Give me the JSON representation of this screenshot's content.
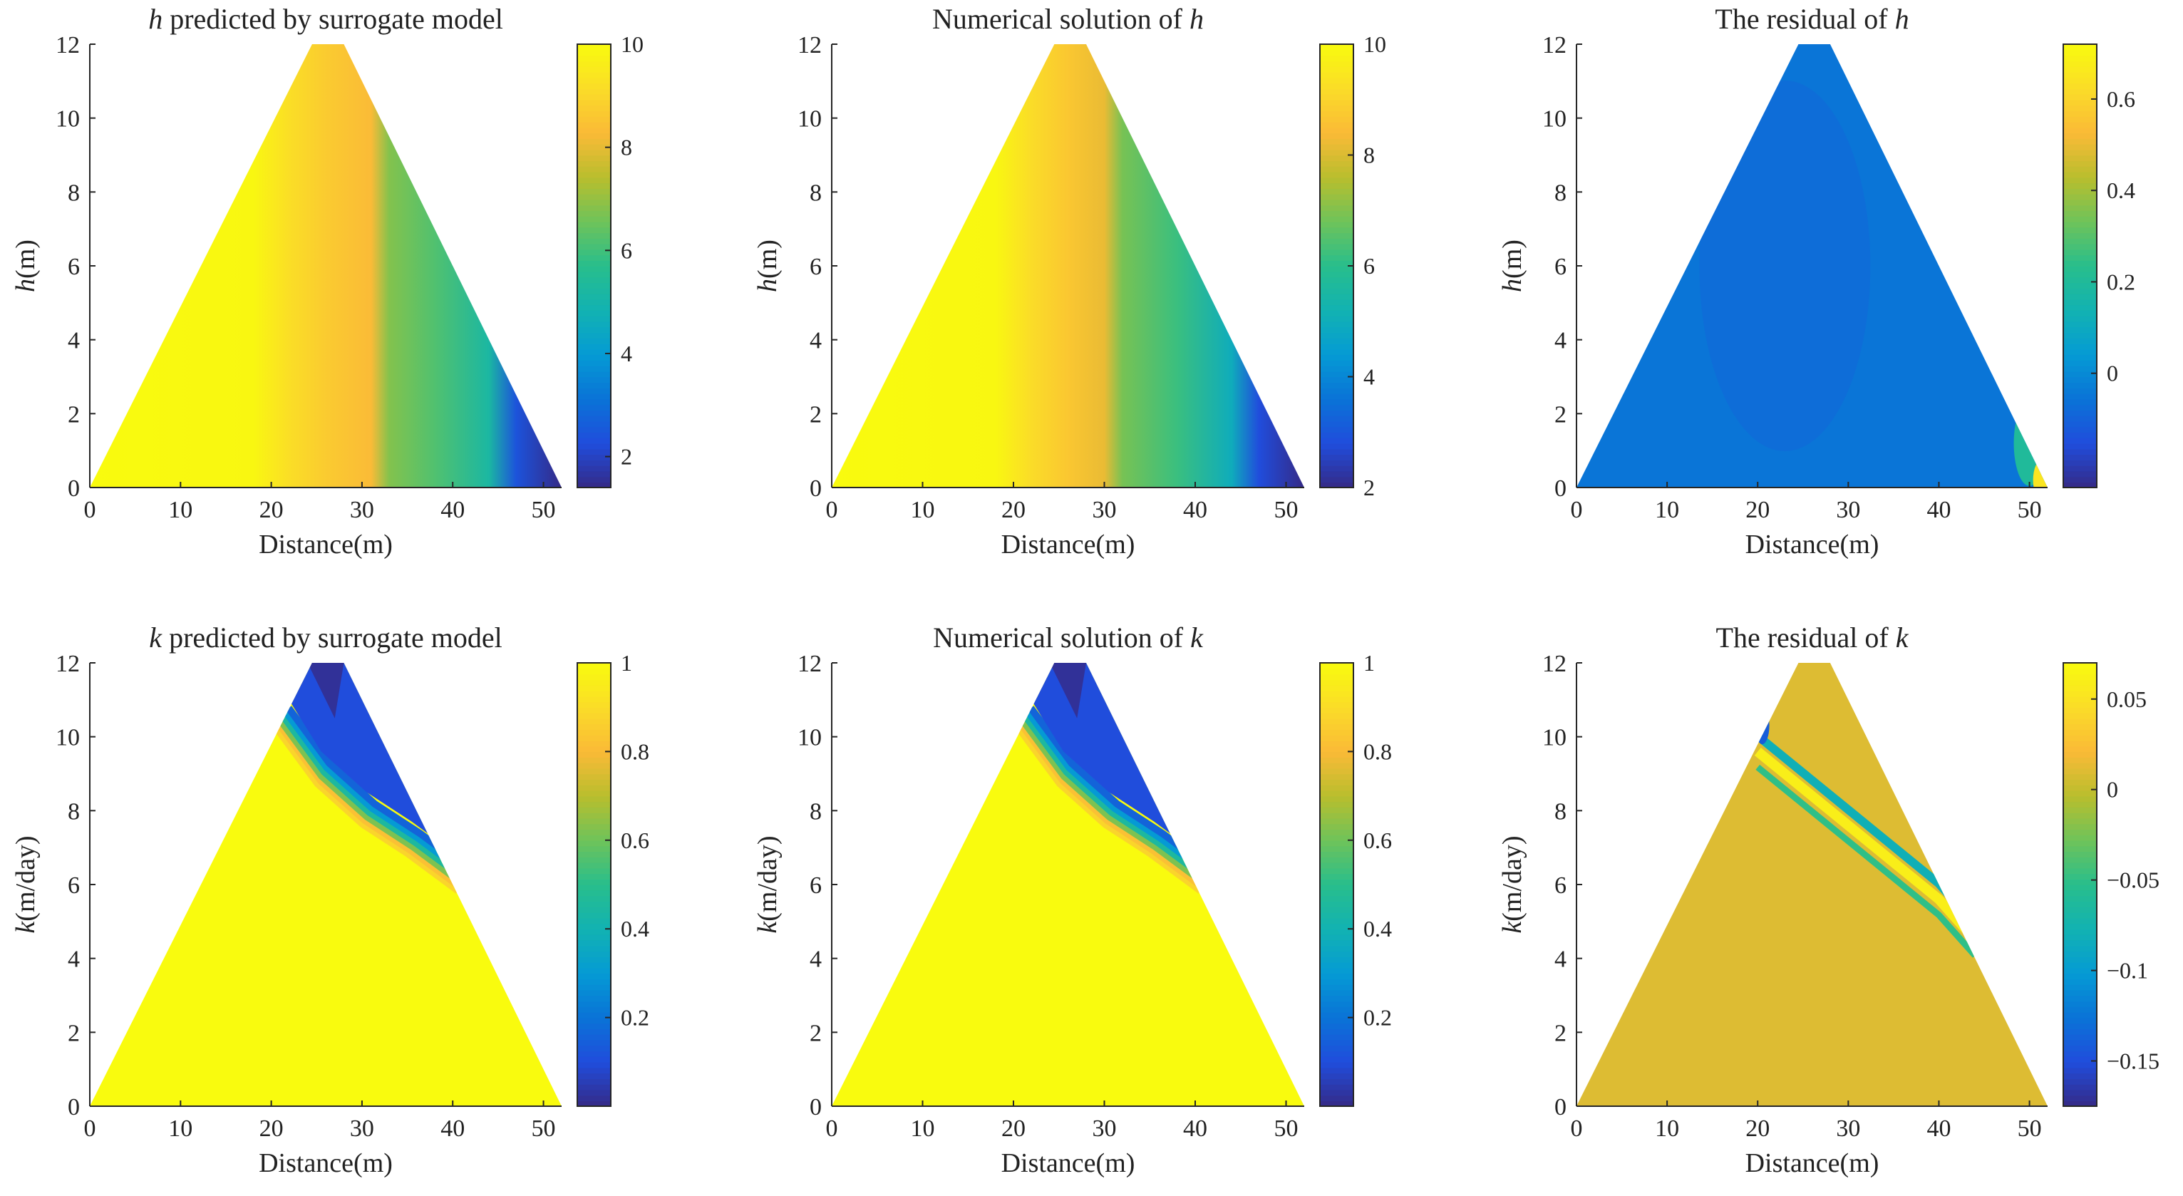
{
  "figure": {
    "panels": [
      {
        "id": "h-pred",
        "title_var": "h",
        "title_rest": " predicted by surrogate model",
        "ylabel_var": "h",
        "ylabel_unit": "(m)",
        "xlabel": "Distance(m)",
        "colorbar": {
          "min": 1.4,
          "max": 10,
          "ticks": [
            "2",
            "4",
            "6",
            "8",
            "10"
          ],
          "tick_values": [
            2,
            4,
            6,
            8,
            10
          ]
        }
      },
      {
        "id": "h-num",
        "title_var": "h",
        "title_rest": "Numerical solution of ",
        "title_var_after": true,
        "ylabel_var": "h",
        "ylabel_unit": "(m)",
        "xlabel": "Distance(m)",
        "colorbar": {
          "min": 2,
          "max": 10,
          "ticks": [
            "2",
            "4",
            "6",
            "8",
            "10"
          ],
          "tick_values": [
            2,
            4,
            6,
            8,
            10
          ]
        }
      },
      {
        "id": "h-res",
        "title_var": "h",
        "title_rest": "The residual of ",
        "title_var_after": true,
        "ylabel_var": "h",
        "ylabel_unit": "(m)",
        "xlabel": "Distance(m)",
        "colorbar": {
          "min": -0.25,
          "max": 0.72,
          "ticks": [
            "0",
            "0.2",
            "0.4",
            "0.6"
          ],
          "tick_values": [
            0,
            0.2,
            0.4,
            0.6
          ]
        }
      },
      {
        "id": "k-pred",
        "title_var": "k",
        "title_rest": " predicted by surrogate model",
        "ylabel_var": "k",
        "ylabel_unit": "(m/day)",
        "xlabel": "Distance(m)",
        "colorbar": {
          "min": 0.0,
          "max": 1.0,
          "ticks": [
            "0.2",
            "0.4",
            "0.6",
            "0.8",
            "1"
          ],
          "tick_values": [
            0.2,
            0.4,
            0.6,
            0.8,
            1.0
          ]
        }
      },
      {
        "id": "k-num",
        "title_var": "k",
        "title_rest": "Numerical solution of ",
        "title_var_after": true,
        "ylabel_var": "k",
        "ylabel_unit": "(m/day)",
        "xlabel": "Distance(m)",
        "colorbar": {
          "min": 0.0,
          "max": 1.0,
          "ticks": [
            "0.2",
            "0.4",
            "0.6",
            "0.8",
            "1"
          ],
          "tick_values": [
            0.2,
            0.4,
            0.6,
            0.8,
            1.0
          ]
        }
      },
      {
        "id": "k-res",
        "title_var": "k",
        "title_rest": "The residual of ",
        "title_var_after": true,
        "ylabel_var": "k",
        "ylabel_unit": "(m/day)",
        "xlabel": "Distance(m)",
        "colorbar": {
          "min": -0.175,
          "max": 0.07,
          "ticks": [
            "0.05",
            "0",
            "−0.05",
            "−0.1",
            "−0.15"
          ],
          "tick_values": [
            0.05,
            0,
            -0.05,
            -0.1,
            -0.15
          ]
        }
      }
    ]
  },
  "chart_data": [
    {
      "type": "heatmap",
      "title": "h predicted by surrogate model",
      "xlabel": "Distance(m)",
      "ylabel": "h(m)",
      "xlim": [
        0,
        52
      ],
      "ylim": [
        0,
        12
      ],
      "xticks": [
        "0",
        "10",
        "20",
        "30",
        "40",
        "50"
      ],
      "yticks": [
        "0",
        "2",
        "4",
        "6",
        "8",
        "10",
        "12"
      ],
      "domain_outline": [
        [
          0,
          0
        ],
        [
          24.5,
          12
        ],
        [
          28,
          12
        ],
        [
          52,
          0
        ]
      ],
      "field_profile_x": [
        0,
        18,
        22,
        26,
        31,
        33,
        38,
        44,
        47,
        52
      ],
      "field_profile_value": [
        10,
        9.9,
        9.2,
        8.7,
        8.3,
        6.8,
        6.2,
        5.2,
        2.4,
        1.4
      ],
      "colorbar_range": [
        1.4,
        10
      ]
    },
    {
      "type": "heatmap",
      "title": "Numerical solution of h",
      "xlabel": "Distance(m)",
      "ylabel": "h(m)",
      "xlim": [
        0,
        52
      ],
      "ylim": [
        0,
        12
      ],
      "xticks": [
        "0",
        "10",
        "20",
        "30",
        "40",
        "50"
      ],
      "yticks": [
        "0",
        "2",
        "4",
        "6",
        "8",
        "10",
        "12"
      ],
      "domain_outline": [
        [
          0,
          0
        ],
        [
          24.5,
          12
        ],
        [
          28,
          12
        ],
        [
          52,
          0
        ]
      ],
      "field_profile_x": [
        0,
        18,
        22,
        26,
        30,
        32,
        38,
        44,
        47,
        52
      ],
      "field_profile_value": [
        10,
        9.9,
        9.2,
        8.7,
        8.2,
        6.9,
        6.2,
        5.0,
        2.8,
        2.0
      ],
      "colorbar_range": [
        2,
        10
      ]
    },
    {
      "type": "heatmap",
      "title": "The residual of h",
      "xlabel": "Distance(m)",
      "ylabel": "h(m)",
      "xlim": [
        0,
        52
      ],
      "ylim": [
        0,
        12
      ],
      "xticks": [
        "0",
        "10",
        "20",
        "30",
        "40",
        "50"
      ],
      "yticks": [
        "0",
        "2",
        "4",
        "6",
        "8",
        "10",
        "12"
      ],
      "domain_outline": [
        [
          0,
          0
        ],
        [
          24.5,
          12
        ],
        [
          28,
          12
        ],
        [
          52,
          0
        ]
      ],
      "typical_value": -0.05,
      "hotspot": {
        "x": 51.5,
        "y": 0.2,
        "value": 0.65
      },
      "colorbar_range": [
        -0.25,
        0.72
      ]
    },
    {
      "type": "heatmap",
      "title": "k predicted by surrogate model",
      "xlabel": "Distance(m)",
      "ylabel": "k(m/day)",
      "xlim": [
        0,
        52
      ],
      "ylim": [
        0,
        12
      ],
      "xticks": [
        "0",
        "10",
        "20",
        "30",
        "40",
        "50"
      ],
      "yticks": [
        "0",
        "2",
        "4",
        "6",
        "8",
        "10",
        "12"
      ],
      "domain_outline": [
        [
          0,
          0
        ],
        [
          24.5,
          12
        ],
        [
          28,
          12
        ],
        [
          52,
          0
        ]
      ],
      "low_k_zone_boundary": [
        [
          20.5,
          10.2
        ],
        [
          25,
          8.7
        ],
        [
          30,
          7.6
        ],
        [
          35,
          6.8
        ],
        [
          40.5,
          5.8
        ]
      ],
      "low_k_value": 0.02,
      "background_value": 1.0,
      "colorbar_range": [
        0.0,
        1.0
      ]
    },
    {
      "type": "heatmap",
      "title": "Numerical solution of k",
      "xlabel": "Distance(m)",
      "ylabel": "k(m/day)",
      "xlim": [
        0,
        52
      ],
      "ylim": [
        0,
        12
      ],
      "xticks": [
        "0",
        "10",
        "20",
        "30",
        "40",
        "50"
      ],
      "yticks": [
        "0",
        "2",
        "4",
        "6",
        "8",
        "10",
        "12"
      ],
      "domain_outline": [
        [
          0,
          0
        ],
        [
          24.5,
          12
        ],
        [
          28,
          12
        ],
        [
          52,
          0
        ]
      ],
      "low_k_zone_boundary": [
        [
          20.5,
          10.2
        ],
        [
          25,
          8.7
        ],
        [
          30,
          7.6
        ],
        [
          35,
          6.8
        ],
        [
          40.5,
          5.8
        ]
      ],
      "low_k_value": 0.02,
      "background_value": 1.0,
      "colorbar_range": [
        0.0,
        1.0
      ]
    },
    {
      "type": "heatmap",
      "title": "The residual of k",
      "xlabel": "Distance(m)",
      "ylabel": "k(m/day)",
      "xlim": [
        0,
        52
      ],
      "ylim": [
        0,
        12
      ],
      "xticks": [
        "0",
        "10",
        "20",
        "30",
        "40",
        "50"
      ],
      "yticks": [
        "0",
        "2",
        "4",
        "6",
        "8",
        "10",
        "12"
      ],
      "domain_outline": [
        [
          0,
          0
        ],
        [
          24.5,
          12
        ],
        [
          28,
          12
        ],
        [
          52,
          0
        ]
      ],
      "typical_value": 0.01,
      "band_min": -0.17,
      "band_max": 0.06,
      "band_path": [
        [
          20,
          9.6
        ],
        [
          30,
          7.6
        ],
        [
          35,
          6.6
        ],
        [
          40,
          5.6
        ],
        [
          44,
          4.5
        ]
      ],
      "colorbar_range": [
        -0.175,
        0.07
      ]
    }
  ]
}
